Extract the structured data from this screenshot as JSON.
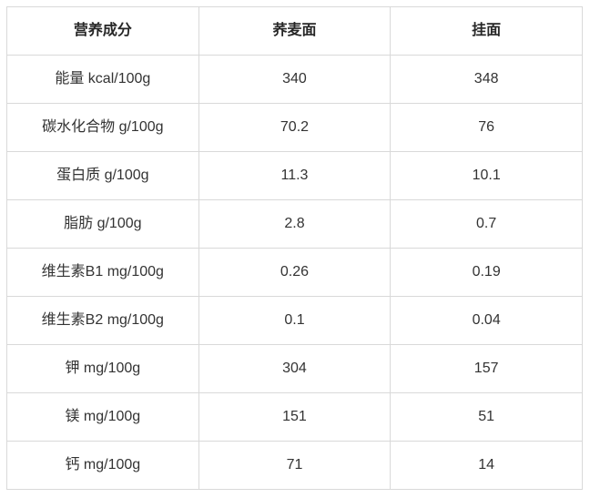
{
  "chart_data": {
    "type": "table",
    "title": "",
    "columns": [
      "营养成分",
      "荞麦面",
      "挂面"
    ],
    "rows": [
      [
        "能量 kcal/100g",
        "340",
        "348"
      ],
      [
        "碳水化合物 g/100g",
        "70.2",
        "76"
      ],
      [
        "蛋白质 g/100g",
        "11.3",
        "10.1"
      ],
      [
        "脂肪 g/100g",
        "2.8",
        "0.7"
      ],
      [
        "维生素B1 mg/100g",
        "0.26",
        "0.19"
      ],
      [
        "维生素B2 mg/100g",
        "0.1",
        "0.04"
      ],
      [
        "钾 mg/100g",
        "304",
        "157"
      ],
      [
        "镁 mg/100g",
        "151",
        "51"
      ],
      [
        "钙 mg/100g",
        "71",
        "14"
      ]
    ],
    "layout": {
      "grid": true,
      "border_color": "#d9d9d9",
      "text_color": "#333333",
      "header_bold": true,
      "cell_alignment": "center"
    }
  }
}
